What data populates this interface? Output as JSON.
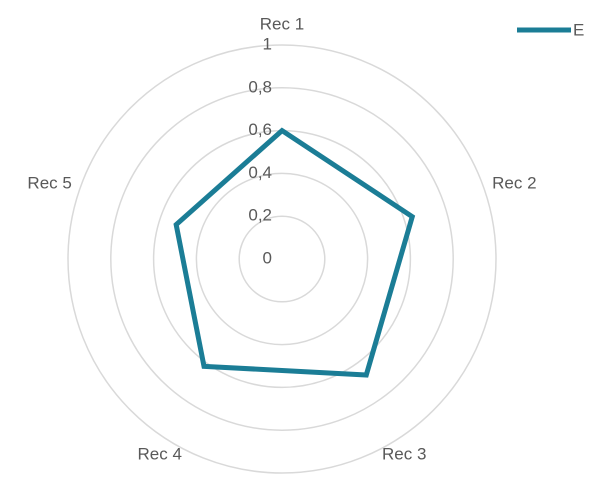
{
  "chart_data": {
    "type": "radar",
    "categories": [
      "Rec 1",
      "Rec 2",
      "Rec 3",
      "Rec 4",
      "Rec 5"
    ],
    "series": [
      {
        "name": "E",
        "color": "#1b7d96",
        "values": [
          0.6,
          0.64,
          0.67,
          0.62,
          0.52
        ]
      }
    ],
    "rlim": [
      0,
      1
    ],
    "rticks": [
      0,
      {
        "value": 0.2,
        "label": "0,2"
      },
      {
        "value": 0.4,
        "label": "0,4"
      },
      {
        "value": 0.6,
        "label": "0,6"
      },
      {
        "value": 0.8,
        "label": "0,8"
      },
      1
    ],
    "grid": true,
    "legend": "top-right"
  }
}
